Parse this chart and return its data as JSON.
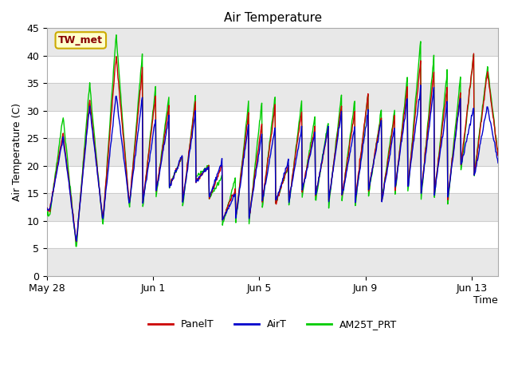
{
  "title": "Air Temperature",
  "xlabel": "Time",
  "ylabel": "Air Temperature (C)",
  "ylim": [
    0,
    45
  ],
  "yticks": [
    0,
    5,
    10,
    15,
    20,
    25,
    30,
    35,
    40,
    45
  ],
  "xtick_labels": [
    "May 28",
    "Jun 1",
    "Jun 5",
    "Jun 9",
    "Jun 13"
  ],
  "xtick_positions": [
    0,
    4,
    8,
    12,
    16
  ],
  "xlim": [
    0,
    17
  ],
  "annotation_text": "TW_met",
  "annotation_bg": "#ffffcc",
  "annotation_border": "#ccaa00",
  "annotation_text_color": "#880000",
  "legend_entries": [
    "PanelT",
    "AirT",
    "AM25T_PRT"
  ],
  "line_colors": [
    "#cc0000",
    "#0000cc",
    "#00cc00"
  ],
  "bg_gray_color": "#e8e8e8",
  "bg_white_color": "#ffffff",
  "bg_gray_ranges": [
    [
      0,
      5
    ],
    [
      10,
      15
    ],
    [
      20,
      25
    ],
    [
      30,
      35
    ],
    [
      40,
      45
    ]
  ],
  "grid_color": "#cccccc",
  "line_width": 1.0,
  "title_fontsize": 11,
  "axis_label_fontsize": 9,
  "tick_fontsize": 9,
  "legend_fontsize": 9
}
